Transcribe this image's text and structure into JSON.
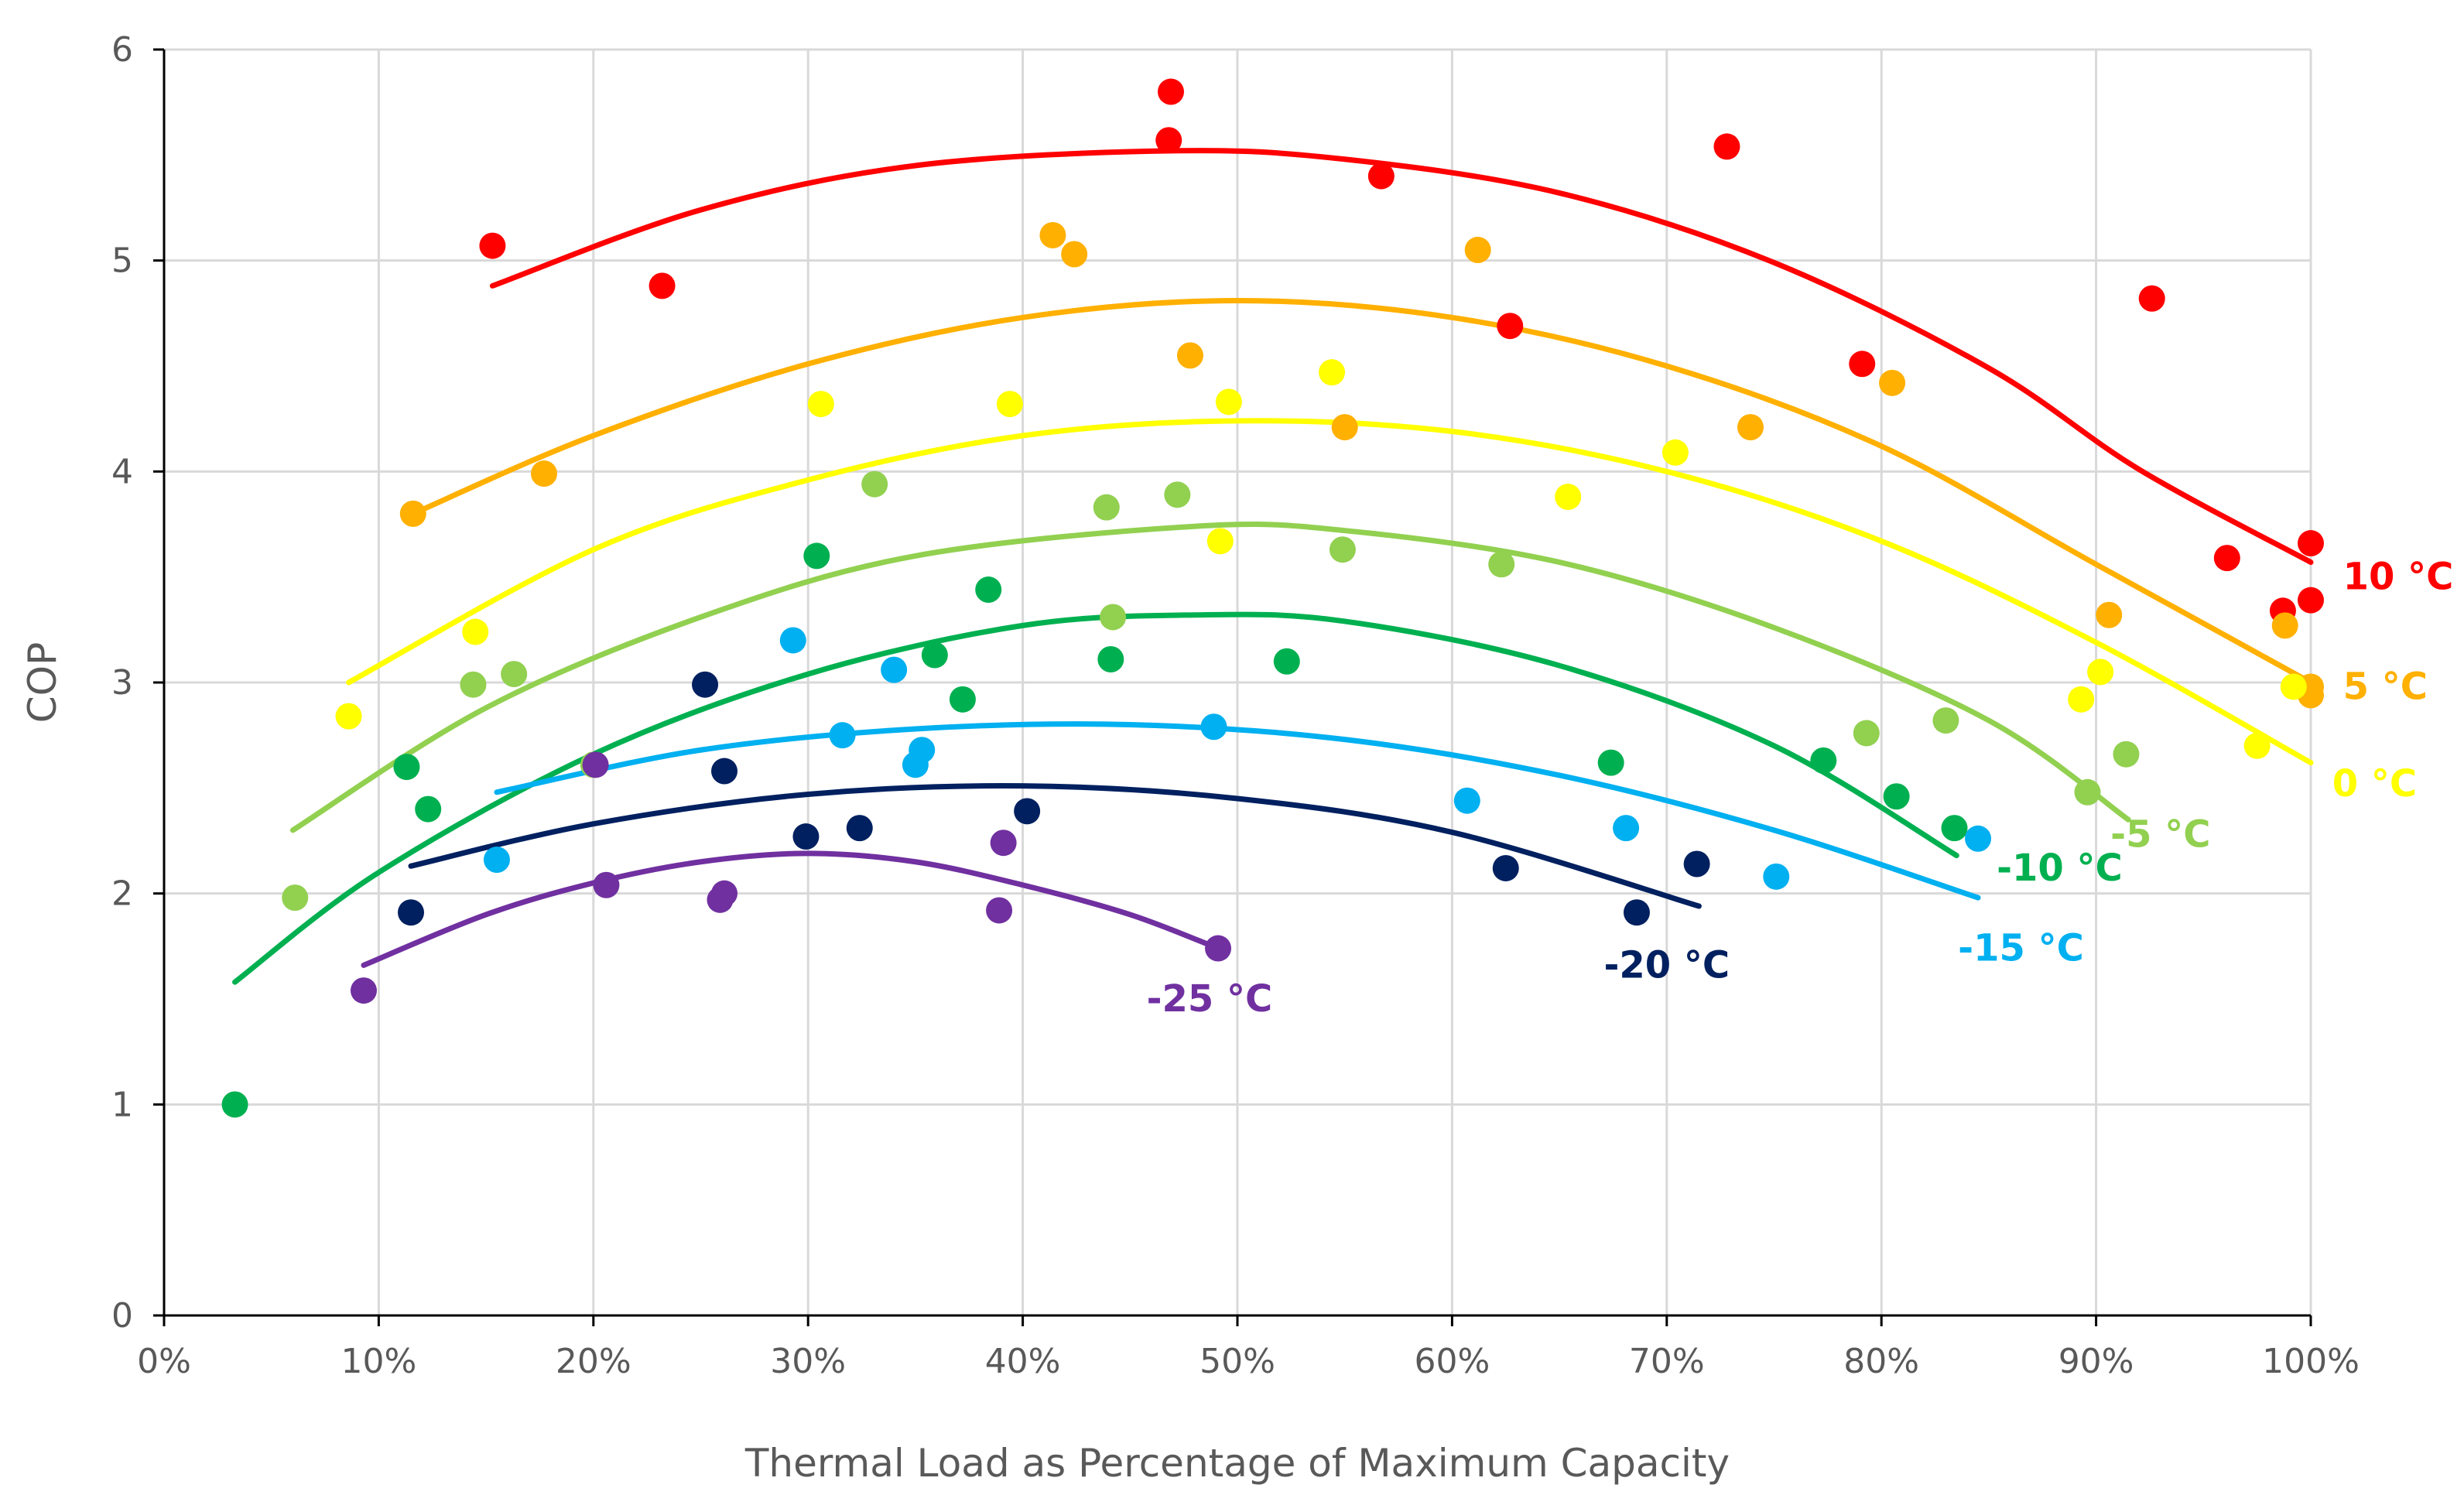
{
  "chart_data": {
    "type": "scatter",
    "title": "",
    "xlabel": "Thermal Load as Percentage of Maximum Capacity",
    "ylabel": "COP",
    "xlim": [
      0,
      100
    ],
    "ylim": [
      0,
      6
    ],
    "grid": true,
    "legend": "none",
    "x_ticks": [
      "0%",
      "10%",
      "20%",
      "30%",
      "40%",
      "50%",
      "60%",
      "70%",
      "80%",
      "90%",
      "100%"
    ],
    "y_ticks": [
      "0",
      "1",
      "2",
      "3",
      "4",
      "5",
      "6"
    ],
    "series": [
      {
        "label": "10 °C",
        "color": "#ff0000",
        "points": [
          [
            15.3,
            5.07
          ],
          [
            23.2,
            4.88
          ],
          [
            46.9,
            5.8
          ],
          [
            46.8,
            5.57
          ],
          [
            56.7,
            5.4
          ],
          [
            62.7,
            4.69
          ],
          [
            72.8,
            5.54
          ],
          [
            79.1,
            4.51
          ],
          [
            92.6,
            4.82
          ],
          [
            96.1,
            3.59
          ],
          [
            98.7,
            3.34
          ],
          [
            100,
            3.66
          ],
          [
            100,
            3.39
          ]
        ],
        "trend": [
          [
            15.3,
            4.88
          ],
          [
            25,
            5.24
          ],
          [
            35,
            5.45
          ],
          [
            47,
            5.52
          ],
          [
            55,
            5.48
          ],
          [
            65,
            5.32
          ],
          [
            75,
            4.99
          ],
          [
            85,
            4.49
          ],
          [
            92,
            4.01
          ],
          [
            100,
            3.57
          ]
        ]
      },
      {
        "label": "5 °C",
        "color": "#ffb000",
        "points": [
          [
            11.6,
            3.8
          ],
          [
            17.7,
            3.99
          ],
          [
            41.4,
            5.12
          ],
          [
            42.4,
            5.03
          ],
          [
            47.8,
            4.55
          ],
          [
            55,
            4.21
          ],
          [
            61.2,
            5.05
          ],
          [
            73.9,
            4.21
          ],
          [
            80.5,
            4.42
          ],
          [
            90.6,
            3.32
          ],
          [
            98.8,
            3.27
          ],
          [
            100,
            2.98
          ],
          [
            100,
            2.94
          ]
        ],
        "trend": [
          [
            11.6,
            3.8
          ],
          [
            20,
            4.17
          ],
          [
            30,
            4.51
          ],
          [
            40,
            4.73
          ],
          [
            50,
            4.81
          ],
          [
            60,
            4.73
          ],
          [
            70,
            4.5
          ],
          [
            80,
            4.12
          ],
          [
            90,
            3.56
          ],
          [
            100,
            3.0
          ]
        ]
      },
      {
        "label": "0 °C",
        "color": "#ffff00",
        "points": [
          [
            8.6,
            2.84
          ],
          [
            14.5,
            3.24
          ],
          [
            30.6,
            4.32
          ],
          [
            39.4,
            4.32
          ],
          [
            49.6,
            4.33
          ],
          [
            49.2,
            3.67
          ],
          [
            54.4,
            4.47
          ],
          [
            65.4,
            3.88
          ],
          [
            70.4,
            4.09
          ],
          [
            89.3,
            2.92
          ],
          [
            90.2,
            3.05
          ],
          [
            97.5,
            2.7
          ],
          [
            99.2,
            2.98
          ]
        ],
        "trend": [
          [
            8.6,
            3.0
          ],
          [
            20,
            3.63
          ],
          [
            30,
            3.96
          ],
          [
            40,
            4.17
          ],
          [
            50,
            4.24
          ],
          [
            60,
            4.19
          ],
          [
            70,
            4.0
          ],
          [
            80,
            3.67
          ],
          [
            90,
            3.19
          ],
          [
            100,
            2.62
          ]
        ]
      },
      {
        "label": "-5 °C",
        "color": "#92d050",
        "points": [
          [
            6.1,
            1.98
          ],
          [
            14.4,
            2.99
          ],
          [
            16.3,
            3.04
          ],
          [
            20,
            2.61
          ],
          [
            33.1,
            3.94
          ],
          [
            43.9,
            3.83
          ],
          [
            47.2,
            3.89
          ],
          [
            44.2,
            3.31
          ],
          [
            54.9,
            3.63
          ],
          [
            62.3,
            3.56
          ],
          [
            79.3,
            2.76
          ],
          [
            83,
            2.82
          ],
          [
            89.6,
            2.48
          ],
          [
            91.4,
            2.66
          ]
        ],
        "trend": [
          [
            6,
            2.3
          ],
          [
            15,
            2.88
          ],
          [
            25,
            3.31
          ],
          [
            35,
            3.6
          ],
          [
            48,
            3.74
          ],
          [
            55,
            3.72
          ],
          [
            65,
            3.57
          ],
          [
            75,
            3.26
          ],
          [
            85,
            2.82
          ],
          [
            91.5,
            2.35
          ]
        ]
      },
      {
        "label": "-10 °C",
        "color": "#00b050",
        "points": [
          [
            3.3,
            1.0
          ],
          [
            11.3,
            2.6
          ],
          [
            12.3,
            2.4
          ],
          [
            30.4,
            3.6
          ],
          [
            35.9,
            3.13
          ],
          [
            37.2,
            2.92
          ],
          [
            38.4,
            3.44
          ],
          [
            44.1,
            3.11
          ],
          [
            52.3,
            3.1
          ],
          [
            67.4,
            2.62
          ],
          [
            77.3,
            2.63
          ],
          [
            80.7,
            2.46
          ],
          [
            83.4,
            2.31
          ]
        ],
        "trend": [
          [
            3.3,
            1.58
          ],
          [
            10,
            2.1
          ],
          [
            20,
            2.66
          ],
          [
            30,
            3.04
          ],
          [
            40,
            3.27
          ],
          [
            48,
            3.32
          ],
          [
            55,
            3.29
          ],
          [
            65,
            3.08
          ],
          [
            75,
            2.7
          ],
          [
            83.5,
            2.18
          ]
        ]
      },
      {
        "label": "-15 °C",
        "color": "#00b0f0",
        "points": [
          [
            15.5,
            2.16
          ],
          [
            29.3,
            3.2
          ],
          [
            31.6,
            2.75
          ],
          [
            34,
            3.06
          ],
          [
            35,
            2.61
          ],
          [
            35.3,
            2.68
          ],
          [
            48.9,
            2.79
          ],
          [
            60.7,
            2.44
          ],
          [
            68.1,
            2.31
          ],
          [
            75.1,
            2.08
          ],
          [
            84.5,
            2.26
          ]
        ],
        "trend": [
          [
            15.5,
            2.48
          ],
          [
            25,
            2.68
          ],
          [
            35,
            2.78
          ],
          [
            45,
            2.8
          ],
          [
            55,
            2.73
          ],
          [
            65,
            2.56
          ],
          [
            75,
            2.3
          ],
          [
            84.5,
            1.98
          ]
        ]
      },
      {
        "label": "-20 °C",
        "color": "#002060",
        "points": [
          [
            11.5,
            1.91
          ],
          [
            25.2,
            2.99
          ],
          [
            26.1,
            2.58
          ],
          [
            29.9,
            2.27
          ],
          [
            32.4,
            2.31
          ],
          [
            40.2,
            2.39
          ],
          [
            62.5,
            2.12
          ],
          [
            68.6,
            1.91
          ],
          [
            71.4,
            2.14
          ]
        ],
        "trend": [
          [
            11.5,
            2.13
          ],
          [
            20,
            2.33
          ],
          [
            30,
            2.47
          ],
          [
            40,
            2.51
          ],
          [
            50,
            2.45
          ],
          [
            60,
            2.29
          ],
          [
            71.5,
            1.94
          ]
        ]
      },
      {
        "label": "-25 °C",
        "color": "#7030a0",
        "points": [
          [
            9.3,
            1.54
          ],
          [
            20.1,
            2.61
          ],
          [
            20.6,
            2.04
          ],
          [
            25.9,
            1.97
          ],
          [
            26.1,
            2.0
          ],
          [
            38.9,
            1.92
          ],
          [
            39.1,
            2.24
          ],
          [
            49.1,
            1.74
          ]
        ],
        "trend": [
          [
            9.3,
            1.66
          ],
          [
            15,
            1.9
          ],
          [
            20,
            2.05
          ],
          [
            25,
            2.15
          ],
          [
            30,
            2.19
          ],
          [
            35,
            2.15
          ],
          [
            40,
            2.04
          ],
          [
            45,
            1.9
          ],
          [
            49.1,
            1.74
          ]
        ]
      }
    ]
  }
}
